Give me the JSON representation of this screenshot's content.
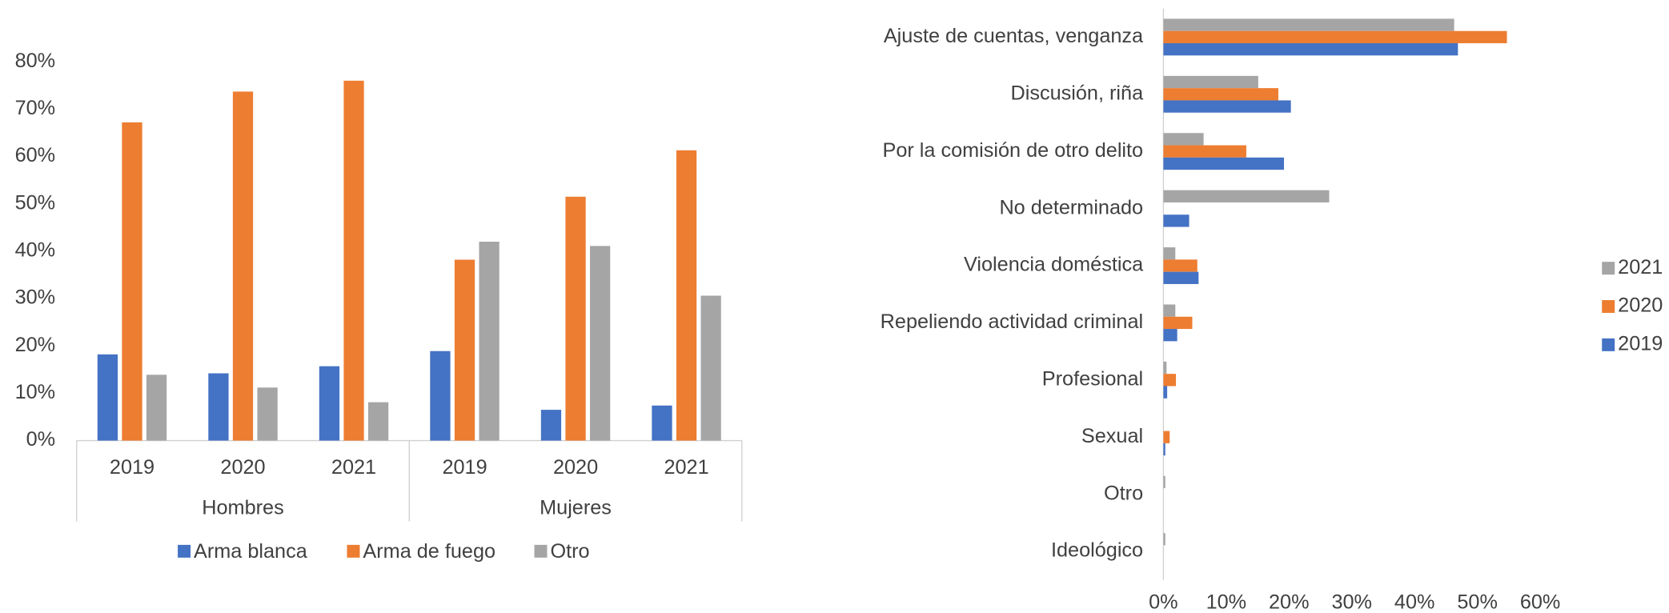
{
  "chart_data": [
    {
      "type": "bar",
      "groups": [
        {
          "name": "Hombres",
          "categories": [
            "2019",
            "2020",
            "2021"
          ]
        },
        {
          "name": "Mujeres",
          "categories": [
            "2019",
            "2020",
            "2021"
          ]
        }
      ],
      "series": [
        {
          "name": "Arma blanca",
          "color": "#4472c4",
          "values": [
            18.2,
            14.2,
            15.7,
            18.9,
            6.5,
            7.4
          ]
        },
        {
          "name": "Arma de fuego",
          "color": "#ed7d31",
          "values": [
            67.2,
            73.7,
            76.0,
            38.2,
            51.5,
            61.3
          ]
        },
        {
          "name": "Otro",
          "color": "#a5a5a5",
          "values": [
            13.9,
            11.2,
            8.1,
            42.0,
            41.1,
            30.6
          ]
        }
      ],
      "ylim": [
        0,
        80
      ],
      "yticks": [
        {
          "value": 0,
          "label": "0%"
        },
        {
          "value": 10,
          "label": "10%"
        },
        {
          "value": 20,
          "label": "20%"
        },
        {
          "value": 30,
          "label": "30%"
        },
        {
          "value": 40,
          "label": "40%"
        },
        {
          "value": 50,
          "label": "50%"
        },
        {
          "value": 60,
          "label": "60%"
        },
        {
          "value": 70,
          "label": "70%"
        },
        {
          "value": 80,
          "label": "80%"
        }
      ],
      "legend": "bottom"
    },
    {
      "type": "barh",
      "categories": [
        "Ajuste de cuentas, venganza",
        "Discusión, riña",
        "Por la comisión de otro delito",
        "No determinado",
        "Violencia doméstica",
        "Repeliendo actividad criminal",
        "Profesional",
        "Sexual",
        "Otro",
        "Ideológico"
      ],
      "series": [
        {
          "name": "2021",
          "color": "#a5a5a5",
          "values": [
            46.3,
            15.1,
            6.4,
            26.4,
            1.9,
            1.9,
            0.5,
            0,
            0.3,
            0.3
          ]
        },
        {
          "name": "2020",
          "color": "#ed7d31",
          "values": [
            54.7,
            18.3,
            13.2,
            0,
            5.4,
            4.6,
            2.0,
            1.0,
            0,
            0
          ]
        },
        {
          "name": "2019",
          "color": "#4472c4",
          "values": [
            46.9,
            20.3,
            19.2,
            4.1,
            5.6,
            2.2,
            0.6,
            0.3,
            0,
            0
          ]
        }
      ],
      "xlim": [
        0,
        60
      ],
      "xticks": [
        {
          "value": 0,
          "label": "0%"
        },
        {
          "value": 10,
          "label": "10%"
        },
        {
          "value": 20,
          "label": "20%"
        },
        {
          "value": 30,
          "label": "30%"
        },
        {
          "value": 40,
          "label": "40%"
        },
        {
          "value": 50,
          "label": "50%"
        },
        {
          "value": 60,
          "label": "60%"
        }
      ],
      "legend": "right"
    }
  ]
}
